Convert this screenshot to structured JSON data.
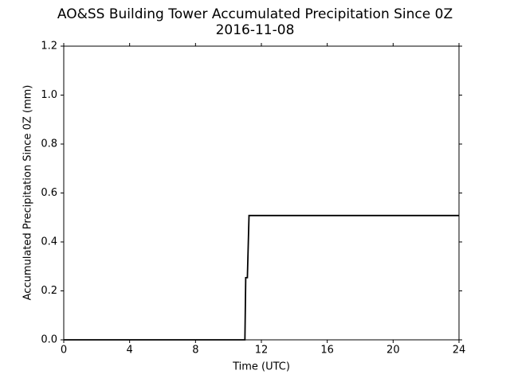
{
  "chart_data": {
    "type": "line",
    "title": "AO&SS Building Tower Accumulated Precipitation Since 0Z",
    "subtitle": "2016-11-08",
    "x_label": "Time (UTC)",
    "y_label": "Accumulated Precipitation Since 0Z (mm)",
    "x": [
      0,
      11.0,
      11.05,
      11.15,
      11.25,
      24
    ],
    "series": [
      {
        "color": "#000000",
        "values": [
          0,
          0,
          0.254,
          0.254,
          0.508,
          0.508
        ]
      }
    ],
    "xlim": [
      0,
      24
    ],
    "xticks": [
      0,
      4,
      8,
      12,
      16,
      20,
      24
    ],
    "ylim": [
      0,
      1.2
    ],
    "yticks": [
      {
        "value": 0,
        "label": "0.0"
      },
      0.2,
      0.4,
      0.6,
      0.8,
      {
        "value": 1,
        "label": "1.0"
      },
      1.2
    ],
    "grid": false
  }
}
